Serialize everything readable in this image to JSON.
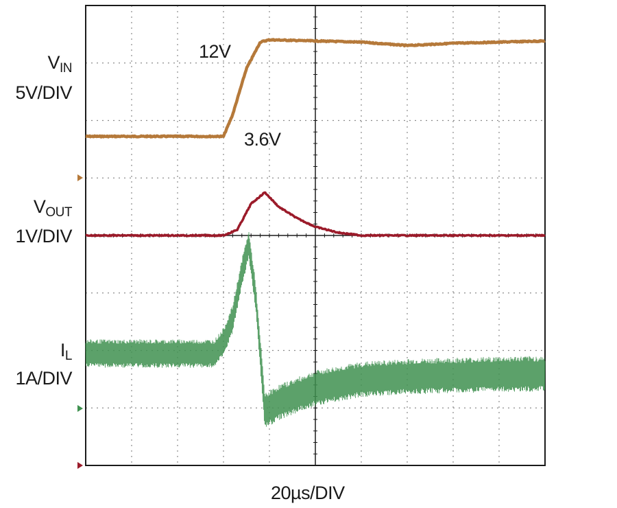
{
  "chart_data": {
    "type": "line",
    "time_scale": "20µs/DIV",
    "divisions": {
      "x": 10,
      "y": 8
    },
    "grid": true,
    "series": [
      {
        "name": "VIN",
        "scale": "5V/DIV",
        "color": "#b5793a",
        "unit": "V",
        "annotations": [
          "12V",
          "3.6V"
        ],
        "x_div": [
          0,
          3.0,
          3.2,
          3.5,
          3.8,
          4.0,
          5.0,
          6.0,
          7.0,
          8.0,
          9.0,
          10.0
        ],
        "y_value": [
          3.6,
          3.6,
          5.5,
          9.5,
          11.8,
          12.0,
          11.9,
          11.8,
          11.5,
          11.7,
          11.8,
          11.9
        ]
      },
      {
        "name": "VOUT",
        "scale": "1V/DIV",
        "color": "#9b1b2a",
        "unit": "V (deviation)",
        "x_div": [
          0,
          3.0,
          3.3,
          3.6,
          3.9,
          4.2,
          4.6,
          5.0,
          5.5,
          6.0,
          8.0,
          10.0
        ],
        "y_value": [
          0,
          0,
          0.1,
          0.55,
          0.75,
          0.5,
          0.3,
          0.15,
          0.05,
          0,
          0,
          0
        ]
      },
      {
        "name": "IL",
        "scale": "1A/DIV",
        "color": "#3f9150",
        "unit": "A (deviation)",
        "ripple_div": 0.45,
        "x_div": [
          0,
          2.8,
          3.0,
          3.2,
          3.4,
          3.55,
          3.7,
          3.9,
          4.2,
          5.0,
          6.0,
          7.0,
          8.0,
          9.0,
          10.0
        ],
        "y_value": [
          0,
          0,
          0.2,
          0.6,
          1.4,
          1.9,
          1.0,
          -1.0,
          -0.85,
          -0.6,
          -0.45,
          -0.4,
          -0.38,
          -0.36,
          -0.35
        ]
      }
    ],
    "channel_labels": [
      {
        "name": "V",
        "sub": "IN",
        "scale": "5V/DIV"
      },
      {
        "name": "V",
        "sub": "OUT",
        "scale": "1V/DIV"
      },
      {
        "name": "I",
        "sub": "L",
        "scale": "1A/DIV"
      }
    ]
  }
}
